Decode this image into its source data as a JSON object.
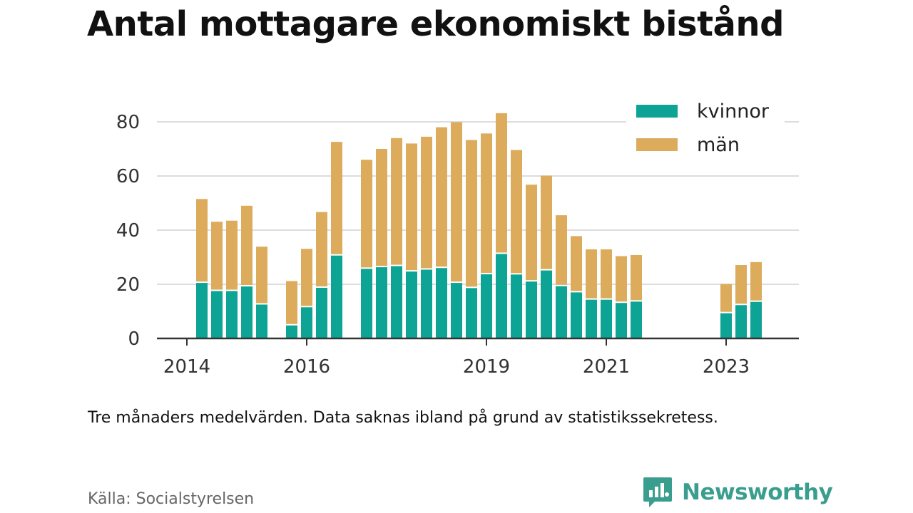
{
  "title": "Antal mottagare ekonomiskt bistånd",
  "note": "Tre månaders medelvärden. Data saknas ibland på grund av statistikssekretess.",
  "source": "Källa: Socialstyrelsen",
  "brand": {
    "name": "Newsworthy",
    "icon": "newsworthy-logo-icon"
  },
  "colors": {
    "kvinnor": "#0da495",
    "man": "#dcac5c",
    "grid": "#dddddd",
    "axis": "#333333",
    "brand": "#3a9e8f"
  },
  "chart_data": {
    "type": "bar",
    "stacked": true,
    "title": "Antal mottagare ekonomiskt bistånd",
    "xlabel": "",
    "ylabel": "",
    "ylim": [
      0,
      90
    ],
    "yticks": [
      0,
      20,
      40,
      60,
      80
    ],
    "xticks": [
      2014,
      2016,
      2019,
      2021,
      2023
    ],
    "grid": true,
    "legend": "top-right",
    "x": [
      2014.25,
      2014.5,
      2014.75,
      2015.0,
      2015.25,
      2015.75,
      2016.0,
      2016.25,
      2016.5,
      2017.0,
      2017.25,
      2017.5,
      2017.75,
      2018.0,
      2018.25,
      2018.5,
      2018.75,
      2019.0,
      2019.25,
      2019.5,
      2019.75,
      2020.0,
      2020.25,
      2020.5,
      2020.75,
      2021.0,
      2021.25,
      2021.5,
      2023.0,
      2023.25,
      2023.5
    ],
    "series": [
      {
        "name": "kvinnor",
        "values": [
          20.5,
          17.5,
          17.5,
          19.2,
          12.5,
          4.8,
          11.5,
          18.7,
          30.6,
          25.7,
          26.3,
          26.7,
          24.7,
          25.4,
          26.0,
          20.5,
          18.6,
          23.7,
          31.2,
          23.6,
          21.0,
          25.1,
          19.3,
          17.0,
          14.3,
          14.3,
          13.1,
          13.6,
          9.3,
          12.3,
          13.5
        ]
      },
      {
        "name": "män",
        "values": [
          31.0,
          25.6,
          26.0,
          29.8,
          21.4,
          16.4,
          21.6,
          28.0,
          42.0,
          40.3,
          43.7,
          47.3,
          47.3,
          49.1,
          52.0,
          59.4,
          54.7,
          52.0,
          52.0,
          46.0,
          35.8,
          35.0,
          26.2,
          20.8,
          18.6,
          18.6,
          17.3,
          17.2,
          10.8,
          14.8,
          14.7
        ]
      }
    ]
  }
}
